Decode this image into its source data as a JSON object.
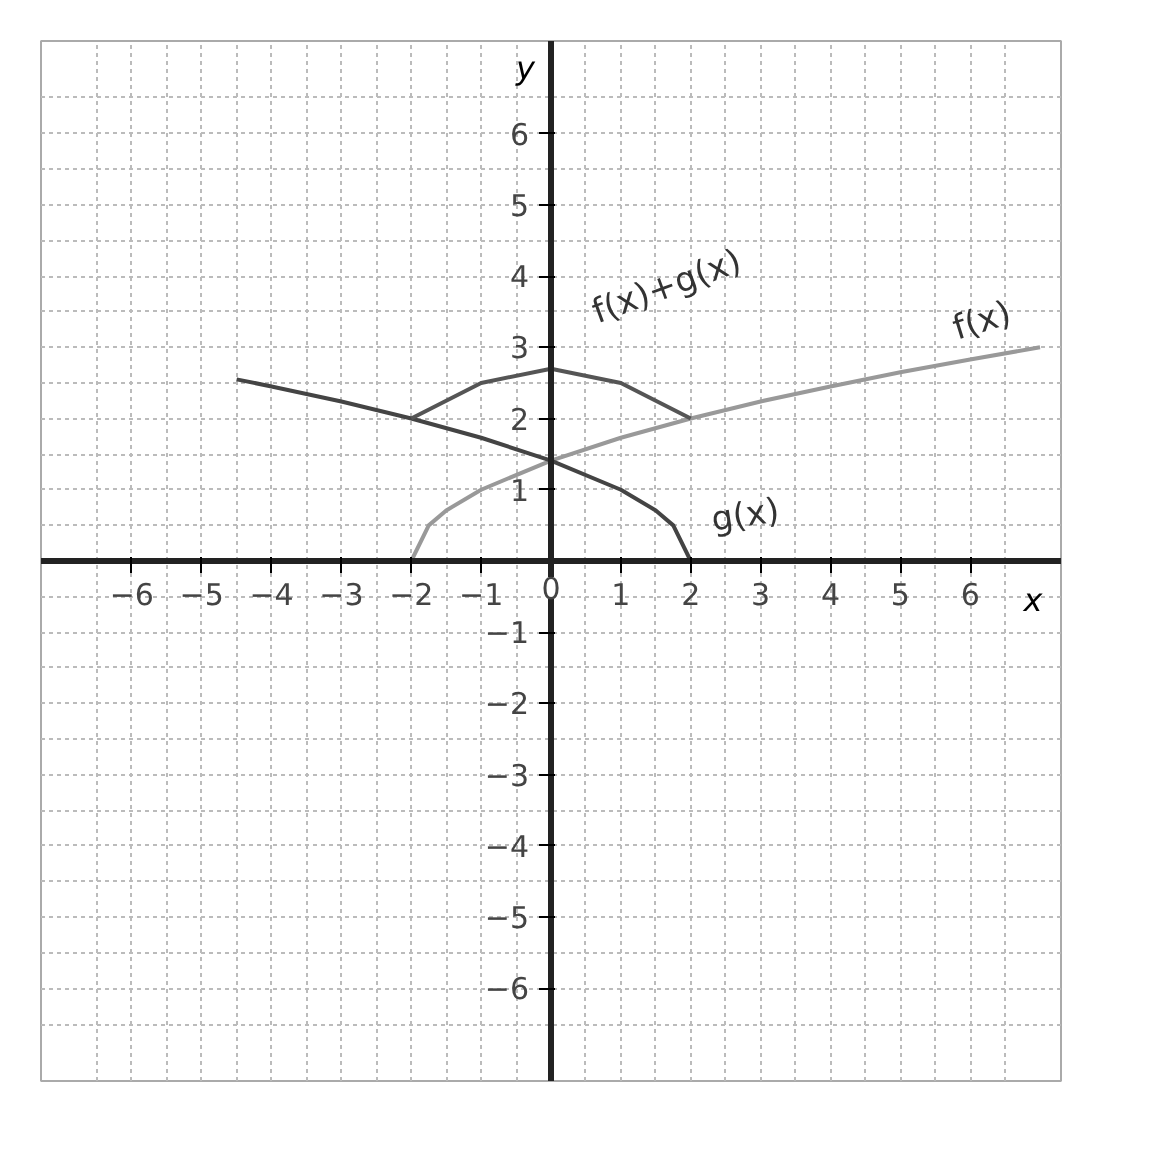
{
  "chart_data": {
    "type": "line",
    "xlabel": "x",
    "ylabel": "y",
    "xlim": [
      -7.3,
      7.3
    ],
    "ylim": [
      -7.3,
      7.3
    ],
    "xticks": [
      -6,
      -5,
      -4,
      -3,
      -2,
      -1,
      0,
      1,
      2,
      3,
      4,
      5,
      6
    ],
    "yticks": [
      -6,
      -5,
      -4,
      -3,
      -2,
      -1,
      1,
      2,
      3,
      4,
      5,
      6
    ],
    "grid": true,
    "series": [
      {
        "color": "#999999",
        "x": [
          -2,
          -1.75,
          -1.5,
          -1,
          0,
          1,
          2,
          3,
          4,
          5,
          6,
          7
        ],
        "values": [
          0,
          0.5,
          0.71,
          1,
          1.41,
          1.73,
          2,
          2.24,
          2.45,
          2.65,
          2.83,
          3
        ]
      },
      {
        "color": "#444444",
        "x": [
          -4.5,
          -4,
          -3,
          -2,
          -1,
          0,
          1,
          1.5,
          1.75,
          2
        ],
        "values": [
          2.55,
          2.45,
          2.24,
          2,
          1.73,
          1.41,
          1,
          0.71,
          0.5,
          0
        ]
      },
      {
        "color": "#555555",
        "x": [
          -2,
          -1,
          0,
          1,
          2
        ],
        "values": [
          2,
          2.5,
          2.7,
          2.5,
          2
        ]
      }
    ],
    "annotations": [
      {
        "text": "f(x)+g(x)",
        "x": 1,
        "y": 2.5
      },
      {
        "text": "f(x)",
        "x": 6,
        "y": 2.83
      },
      {
        "text": "g(x)",
        "x": 2,
        "y": 0
      }
    ]
  }
}
